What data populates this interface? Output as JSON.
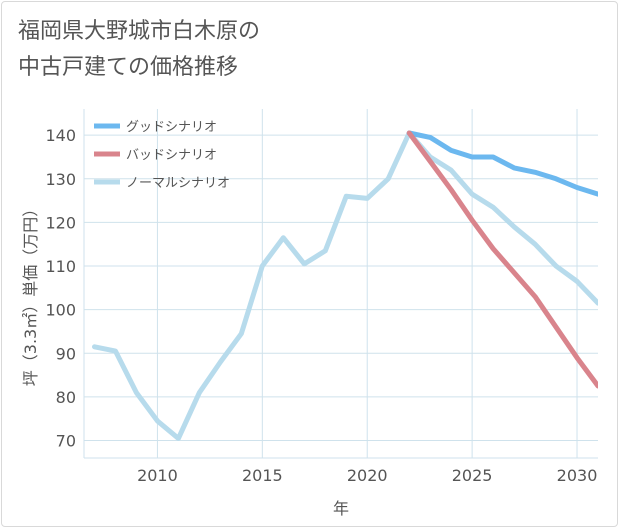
{
  "title": {
    "line1": "福岡県大野城市白木原の",
    "line2": "中古戸建ての価格推移"
  },
  "chart_data": {
    "type": "line",
    "xlabel": "年",
    "ylabel": "坪（3.3㎡）単価（万円）",
    "xlim": [
      2006.5,
      2031
    ],
    "ylim": [
      66,
      146
    ],
    "xticks": [
      2010,
      2015,
      2020,
      2025,
      2030
    ],
    "yticks": [
      70,
      80,
      90,
      100,
      110,
      120,
      130,
      140
    ],
    "grid": true,
    "legend_position": "top-left",
    "series": [
      {
        "name": "グッドシナリオ",
        "color": "#6cb8ef",
        "points": [
          [
            2022,
            140.5
          ],
          [
            2023,
            139.5
          ],
          [
            2024,
            136.5
          ],
          [
            2025,
            135
          ],
          [
            2026,
            135
          ],
          [
            2027,
            132.5
          ],
          [
            2028,
            131.5
          ],
          [
            2029,
            130
          ],
          [
            2030,
            128
          ],
          [
            2031,
            126.5
          ]
        ]
      },
      {
        "name": "バッドシナリオ",
        "color": "#d9848c",
        "points": [
          [
            2022,
            140.5
          ],
          [
            2023,
            134
          ],
          [
            2024,
            127.5
          ],
          [
            2025,
            120.5
          ],
          [
            2026,
            114
          ],
          [
            2027,
            108.5
          ],
          [
            2028,
            103
          ],
          [
            2029,
            96
          ],
          [
            2030,
            89
          ],
          [
            2031,
            82.5
          ]
        ]
      },
      {
        "name": "ノーマルシナリオ",
        "color": "#b7dbec",
        "points": [
          [
            2007,
            91.5
          ],
          [
            2008,
            90.5
          ],
          [
            2009,
            81
          ],
          [
            2010,
            74.5
          ],
          [
            2011,
            70.5
          ],
          [
            2012,
            81
          ],
          [
            2013,
            88
          ],
          [
            2014,
            94.5
          ],
          [
            2015,
            110
          ],
          [
            2016,
            116.5
          ],
          [
            2017,
            110.5
          ],
          [
            2018,
            113.5
          ],
          [
            2019,
            126
          ],
          [
            2020,
            125.5
          ],
          [
            2021,
            130
          ],
          [
            2022,
            140.5
          ],
          [
            2023,
            135
          ],
          [
            2024,
            132
          ],
          [
            2025,
            126.5
          ],
          [
            2026,
            123.5
          ],
          [
            2027,
            119
          ],
          [
            2028,
            115
          ],
          [
            2029,
            110
          ],
          [
            2030,
            106.5
          ],
          [
            2031,
            101.5
          ]
        ]
      }
    ]
  }
}
